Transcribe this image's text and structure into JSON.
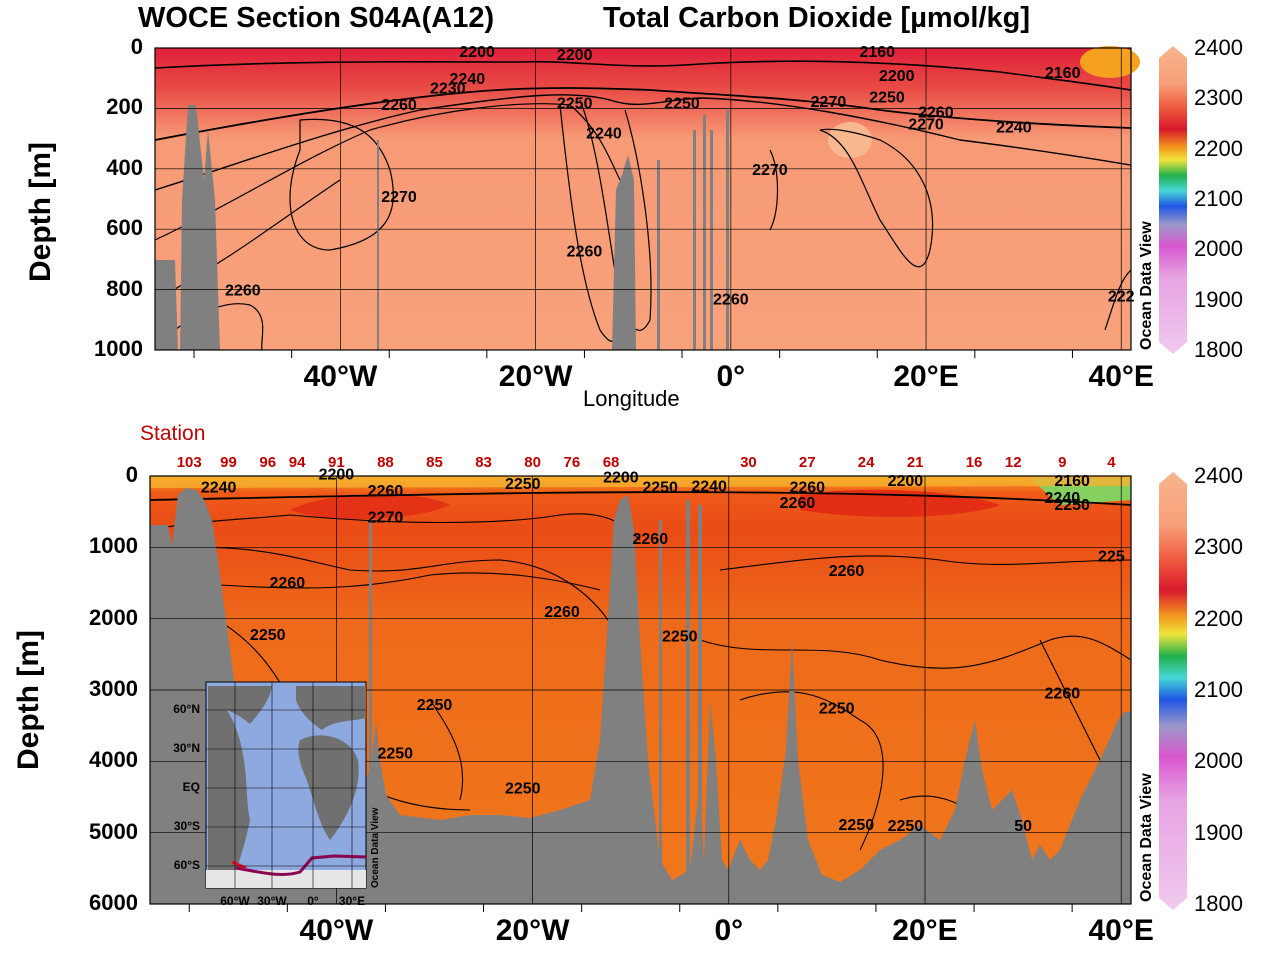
{
  "title_left": "WOCE Section S04A(A12)",
  "title_right": "Total Carbon Dioxide [µmol/kg]",
  "watermark": "Ocean Data View",
  "colors": {
    "background": "#ffffff",
    "land": "#808080",
    "station_text": "#c00000"
  },
  "chart_data": [
    {
      "type": "heatmap",
      "name": "top-section",
      "xlabel": "Longitude",
      "ylabel": "Depth [m]",
      "xlim": [
        -59,
        41
      ],
      "ylim": [
        1000,
        0
      ],
      "x_ticks": [
        {
          "value": -40,
          "label": "40°W"
        },
        {
          "value": -20,
          "label": "20°W"
        },
        {
          "value": 0,
          "label": "0°"
        },
        {
          "value": 20,
          "label": "20°E"
        },
        {
          "value": 40,
          "label": "40°E"
        }
      ],
      "y_ticks": [
        {
          "value": 0,
          "label": "0"
        },
        {
          "value": 200,
          "label": "200"
        },
        {
          "value": 400,
          "label": "400"
        },
        {
          "value": 600,
          "label": "600"
        },
        {
          "value": 800,
          "label": "800"
        },
        {
          "value": 1000,
          "label": "1000"
        }
      ],
      "grid": true,
      "colorbar": {
        "min": 1800,
        "max": 2400,
        "ticks": [
          "2400",
          "2300",
          "2200",
          "2100",
          "2000",
          "1900",
          "1800"
        ]
      },
      "contour_labels": [
        {
          "text": "2200",
          "x": -26,
          "y": 30
        },
        {
          "text": "2200",
          "x": -16,
          "y": 40
        },
        {
          "text": "2160",
          "x": 15,
          "y": 30
        },
        {
          "text": "2200",
          "x": 17,
          "y": 110
        },
        {
          "text": "2160",
          "x": 34,
          "y": 100
        },
        {
          "text": "2240",
          "x": -27,
          "y": 120
        },
        {
          "text": "2230",
          "x": -29,
          "y": 150
        },
        {
          "text": "2260",
          "x": -34,
          "y": 205
        },
        {
          "text": "2250",
          "x": -16,
          "y": 200
        },
        {
          "text": "2240",
          "x": -13,
          "y": 300
        },
        {
          "text": "2250",
          "x": -5,
          "y": 200
        },
        {
          "text": "2270",
          "x": 10,
          "y": 195
        },
        {
          "text": "2250",
          "x": 16,
          "y": 180
        },
        {
          "text": "2260",
          "x": 21,
          "y": 230
        },
        {
          "text": "2270",
          "x": 20,
          "y": 270
        },
        {
          "text": "2240",
          "x": 29,
          "y": 280
        },
        {
          "text": "2270",
          "x": 4,
          "y": 420
        },
        {
          "text": "2270",
          "x": -34,
          "y": 510
        },
        {
          "text": "2260",
          "x": -15,
          "y": 690
        },
        {
          "text": "2260",
          "x": -50,
          "y": 820
        },
        {
          "text": "2260",
          "x": 0,
          "y": 850
        },
        {
          "text": "222",
          "x": 40,
          "y": 840
        }
      ]
    },
    {
      "type": "heatmap",
      "name": "bottom-section",
      "xlabel": "",
      "ylabel": "Depth [m]",
      "xlim": [
        -59,
        41
      ],
      "ylim": [
        6000,
        0
      ],
      "x_ticks": [
        {
          "value": -40,
          "label": "40°W"
        },
        {
          "value": -20,
          "label": "20°W"
        },
        {
          "value": 0,
          "label": "0°"
        },
        {
          "value": 20,
          "label": "20°E"
        },
        {
          "value": 40,
          "label": "40°E"
        }
      ],
      "y_ticks": [
        {
          "value": 0,
          "label": "0"
        },
        {
          "value": 1000,
          "label": "1000"
        },
        {
          "value": 2000,
          "label": "2000"
        },
        {
          "value": 3000,
          "label": "3000"
        },
        {
          "value": 4000,
          "label": "4000"
        },
        {
          "value": 5000,
          "label": "5000"
        },
        {
          "value": 6000,
          "label": "6000"
        }
      ],
      "grid": true,
      "colorbar": {
        "min": 1800,
        "max": 2400,
        "ticks": [
          "2400",
          "2300",
          "2200",
          "2100",
          "2000",
          "1900",
          "1800"
        ]
      },
      "station_header": "Station",
      "stations": [
        {
          "label": "103",
          "x": -55
        },
        {
          "label": "99",
          "x": -51
        },
        {
          "label": "96",
          "x": -47
        },
        {
          "label": "94",
          "x": -44
        },
        {
          "label": "91",
          "x": -40
        },
        {
          "label": "88",
          "x": -35
        },
        {
          "label": "85",
          "x": -30
        },
        {
          "label": "83",
          "x": -25
        },
        {
          "label": "80",
          "x": -20
        },
        {
          "label": "76",
          "x": -16
        },
        {
          "label": "68",
          "x": -12
        },
        {
          "label": "30",
          "x": 2
        },
        {
          "label": "27",
          "x": 8
        },
        {
          "label": "24",
          "x": 14
        },
        {
          "label": "21",
          "x": 19
        },
        {
          "label": "16",
          "x": 25
        },
        {
          "label": "12",
          "x": 29
        },
        {
          "label": "9",
          "x": 34
        },
        {
          "label": "4",
          "x": 39
        }
      ],
      "contour_labels": [
        {
          "text": "2240",
          "x": -52,
          "y": 230
        },
        {
          "text": "2200",
          "x": -40,
          "y": 50
        },
        {
          "text": "2260",
          "x": -35,
          "y": 280
        },
        {
          "text": "2270",
          "x": -35,
          "y": 650
        },
        {
          "text": "2250",
          "x": -21,
          "y": 180
        },
        {
          "text": "2200",
          "x": -11,
          "y": 90
        },
        {
          "text": "2250",
          "x": -7,
          "y": 230
        },
        {
          "text": "2240",
          "x": -2,
          "y": 220
        },
        {
          "text": "2260",
          "x": -8,
          "y": 950
        },
        {
          "text": "2260",
          "x": 8,
          "y": 230
        },
        {
          "text": "2260",
          "x": 7,
          "y": 450
        },
        {
          "text": "2200",
          "x": 18,
          "y": 140
        },
        {
          "text": "2160",
          "x": 35,
          "y": 140
        },
        {
          "text": "2240",
          "x": 34,
          "y": 380
        },
        {
          "text": "2250",
          "x": 35,
          "y": 480
        },
        {
          "text": "2260",
          "x": -45,
          "y": 1570
        },
        {
          "text": "2260",
          "x": 12,
          "y": 1400
        },
        {
          "text": "225",
          "x": 39,
          "y": 1200
        },
        {
          "text": "2250",
          "x": -47,
          "y": 2300
        },
        {
          "text": "2260",
          "x": -17,
          "y": 1980
        },
        {
          "text": "2250",
          "x": -5,
          "y": 2320
        },
        {
          "text": "2250",
          "x": -30,
          "y": 3280
        },
        {
          "text": "2250",
          "x": -34,
          "y": 3960
        },
        {
          "text": "2250",
          "x": 11,
          "y": 3330
        },
        {
          "text": "2260",
          "x": 34,
          "y": 3120
        },
        {
          "text": "2250",
          "x": -21,
          "y": 4450
        },
        {
          "text": "2250",
          "x": 13,
          "y": 4960
        },
        {
          "text": "2250",
          "x": 18,
          "y": 4980
        },
        {
          "text": "50",
          "x": 30,
          "y": 4980
        }
      ]
    }
  ],
  "inset_map": {
    "lat_labels": [
      "60°N",
      "30°N",
      "EQ",
      "30°S",
      "60°S"
    ],
    "lon_labels": [
      "60°W",
      "30°W",
      "0°",
      "30°E"
    ],
    "watermark": "Ocean Data View"
  }
}
